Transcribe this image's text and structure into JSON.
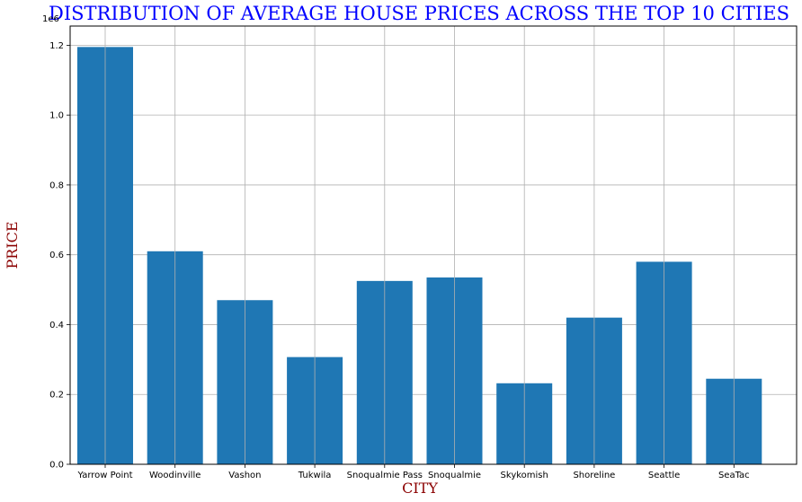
{
  "chart_data": {
    "type": "bar",
    "title": "DISTRIBUTION OF AVERAGE HOUSE PRICES ACROSS THE TOP 10 CITIES",
    "xlabel": "CITY",
    "ylabel": "PRICE",
    "y_offset_label": "1e6",
    "categories": [
      "Yarrow Point",
      "Woodinville",
      "Vashon",
      "Tukwila",
      "Snoqualmie Pass",
      "Snoqualmie",
      "Skykomish",
      "Shoreline",
      "Seattle",
      "SeaTac"
    ],
    "values": [
      1195000,
      610000,
      470000,
      307000,
      525000,
      535000,
      232000,
      420000,
      580000,
      245000
    ],
    "ylim": [
      0,
      1255000
    ],
    "yticks": [
      0.0,
      0.2,
      0.4,
      0.6,
      0.8,
      1.0,
      1.2
    ],
    "ytick_labels": [
      "0.0",
      "0.2",
      "0.4",
      "0.6",
      "0.8",
      "1.0",
      "1.2"
    ],
    "grid": true,
    "bar_color": "#1f77b4",
    "title_color": "#0000ff",
    "label_color": "#8b0000"
  }
}
